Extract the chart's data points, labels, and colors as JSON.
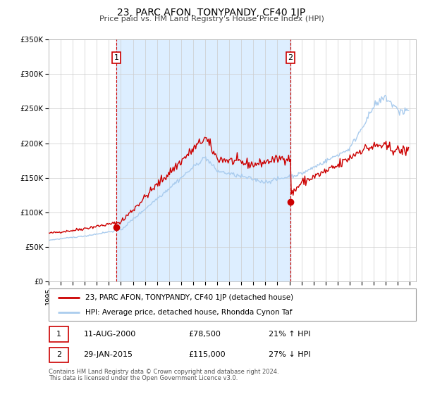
{
  "title": "23, PARC AFON, TONYPANDY, CF40 1JP",
  "subtitle": "Price paid vs. HM Land Registry's House Price Index (HPI)",
  "legend_line1": "23, PARC AFON, TONYPANDY, CF40 1JP (detached house)",
  "legend_line2": "HPI: Average price, detached house, Rhondda Cynon Taf",
  "annotation1_date": "11-AUG-2000",
  "annotation1_price": "£78,500",
  "annotation1_hpi": "21% ↑ HPI",
  "annotation2_date": "29-JAN-2015",
  "annotation2_price": "£115,000",
  "annotation2_hpi": "27% ↓ HPI",
  "footer1": "Contains HM Land Registry data © Crown copyright and database right 2024.",
  "footer2": "This data is licensed under the Open Government Licence v3.0.",
  "marker1_x": 2000.614,
  "marker1_y": 78500,
  "marker2_x": 2015.082,
  "marker2_y": 115000,
  "vline1_x": 2000.614,
  "vline2_x": 2015.082,
  "shade_x1": 2000.614,
  "shade_x2": 2015.082,
  "ylim_max": 350000,
  "ylim_min": 0,
  "xlim_min": 1995.0,
  "xlim_max": 2025.5,
  "price_line_color": "#cc0000",
  "hpi_line_color": "#aaccee",
  "vline_color": "#cc0000",
  "shade_color": "#ddeeff",
  "marker_color": "#cc0000",
  "background_color": "#ffffff",
  "grid_color": "#cccccc",
  "box_color": "#cc0000",
  "yticks": [
    0,
    50000,
    100000,
    150000,
    200000,
    250000,
    300000,
    350000
  ],
  "ytick_labels": [
    "£0",
    "£50K",
    "£100K",
    "£150K",
    "£200K",
    "£250K",
    "£300K",
    "£350K"
  ],
  "xticks": [
    1995,
    1996,
    1997,
    1998,
    1999,
    2000,
    2001,
    2002,
    2003,
    2004,
    2005,
    2006,
    2007,
    2008,
    2009,
    2010,
    2011,
    2012,
    2013,
    2014,
    2015,
    2016,
    2017,
    2018,
    2019,
    2020,
    2021,
    2022,
    2023,
    2024,
    2025
  ]
}
